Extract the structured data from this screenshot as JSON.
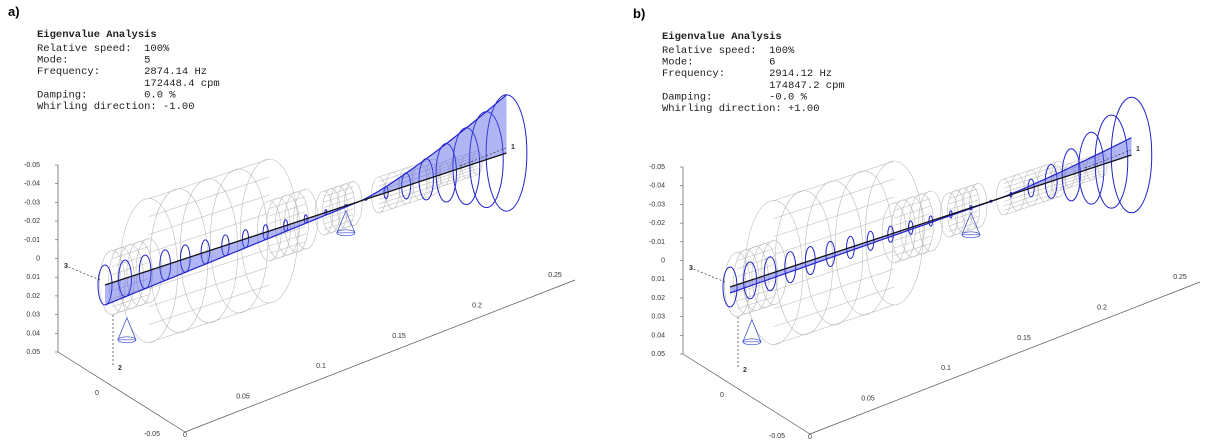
{
  "panels": [
    {
      "label": "a)",
      "info": {
        "title": "Eigenvalue Analysis",
        "lines": [
          {
            "label": "Relative speed:",
            "value": "100%"
          },
          {
            "label": "Mode:",
            "value": "5"
          },
          {
            "label": "Frequency:",
            "value": "2874.14 Hz"
          },
          {
            "value": "172448.4 cpm"
          },
          {
            "label": "Damping:",
            "value": "0.0 %"
          },
          {
            "label": "Whirling direction:",
            "value": "-1.00"
          }
        ]
      },
      "vertical_ticks": [
        "-0.05",
        "-0.04",
        "-0.03",
        "-0.02",
        "-0.01",
        "0",
        "0.01",
        "0.02",
        "0.03",
        "0.04",
        "0.05"
      ],
      "depth_ticks": [
        "0",
        "-0.05"
      ],
      "axial_ticks": [
        "0",
        "0.05",
        "0.1",
        "0.15",
        "0.2",
        "0.25"
      ],
      "axes": [
        "1",
        "2",
        "3"
      ]
    },
    {
      "label": "b)",
      "info": {
        "title": "Eigenvalue Analysis",
        "lines": [
          {
            "label": "Relative speed:",
            "value": "100%"
          },
          {
            "label": "Mode:",
            "value": "6"
          },
          {
            "label": "Frequency:",
            "value": "2914.12 Hz"
          },
          {
            "value": "174847.2 cpm"
          },
          {
            "label": "Damping:",
            "value": "-0.0 %"
          },
          {
            "label": "Whirling direction:",
            "value": "+1.00"
          }
        ]
      },
      "vertical_ticks": [
        "-0.05",
        "-0.04",
        "-0.03",
        "-0.02",
        "-0.01",
        "0",
        "0.01",
        "0.02",
        "0.03",
        "0.04",
        "0.05"
      ],
      "depth_ticks": [
        "0",
        "-0.05"
      ],
      "axial_ticks": [
        "0",
        "0.05",
        "0.1",
        "0.15",
        "0.2",
        "0.25"
      ],
      "axes": [
        "1",
        "2",
        "3"
      ]
    }
  ]
}
